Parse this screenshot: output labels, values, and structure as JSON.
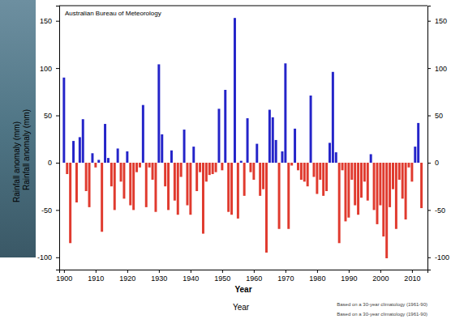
{
  "chart_data": {
    "type": "bar",
    "annotation": "Australian Bureau of Meteorology",
    "xlabel": "Year",
    "ylabel": "Rainfall anomaly (mm)",
    "note": "Based on a 30-year climatology (1961-90)",
    "overlay": {
      "xlabel": "Year",
      "ylabel": "Rainfall anomaly (mm)",
      "note": "Based on a 30-year climatology (1961-90)"
    },
    "x": [
      1900,
      1901,
      1902,
      1903,
      1904,
      1905,
      1906,
      1907,
      1908,
      1909,
      1910,
      1911,
      1912,
      1913,
      1914,
      1915,
      1916,
      1917,
      1918,
      1919,
      1920,
      1921,
      1922,
      1923,
      1924,
      1925,
      1926,
      1927,
      1928,
      1929,
      1930,
      1931,
      1932,
      1933,
      1934,
      1935,
      1936,
      1937,
      1938,
      1939,
      1940,
      1941,
      1942,
      1943,
      1944,
      1945,
      1946,
      1947,
      1948,
      1949,
      1950,
      1951,
      1952,
      1953,
      1954,
      1955,
      1956,
      1957,
      1958,
      1959,
      1960,
      1961,
      1962,
      1963,
      1964,
      1965,
      1966,
      1967,
      1968,
      1969,
      1970,
      1971,
      1972,
      1973,
      1974,
      1975,
      1976,
      1977,
      1978,
      1979,
      1980,
      1981,
      1982,
      1983,
      1984,
      1985,
      1986,
      1987,
      1988,
      1989,
      1990,
      1991,
      1992,
      1993,
      1994,
      1995,
      1996,
      1997,
      1998,
      1999,
      2000,
      2001,
      2002,
      2003,
      2004,
      2005,
      2006,
      2007,
      2008,
      2009,
      2010,
      2011,
      2012,
      2013
    ],
    "values": [
      90,
      -12,
      -85,
      23,
      -42,
      27,
      46,
      -30,
      -47,
      10,
      -5,
      3,
      -73,
      41,
      5,
      -25,
      -50,
      15,
      -20,
      -38,
      12,
      -45,
      -50,
      -10,
      -5,
      61,
      -47,
      -5,
      -18,
      -52,
      104,
      30,
      -25,
      -50,
      13,
      -40,
      -55,
      -15,
      35,
      -45,
      -55,
      17,
      -30,
      -10,
      -75,
      -20,
      -13,
      -12,
      -10,
      57,
      -8,
      77,
      -52,
      -55,
      153,
      -59,
      2,
      -35,
      47,
      -10,
      -18,
      20,
      -35,
      -28,
      -95,
      56,
      48,
      24,
      -70,
      12,
      105,
      -70,
      -3,
      36,
      -8,
      -18,
      -20,
      -25,
      71,
      -15,
      -33,
      -18,
      -35,
      -30,
      21,
      96,
      11,
      -85,
      -8,
      -62,
      -58,
      -18,
      -45,
      -55,
      -37,
      -20,
      -40,
      9,
      -50,
      -65,
      -45,
      -78,
      -101,
      -47,
      -28,
      -70,
      -18,
      -38,
      -60,
      -5,
      -20,
      17,
      42,
      -48
    ],
    "colors": [
      "#2424c9",
      "#e03a2e",
      "#e03a2e",
      "#2424c9",
      "#e03a2e",
      "#2424c9",
      "#2424c9",
      "#e03a2e",
      "#e03a2e",
      "#2424c9",
      "#e03a2e",
      "#2424c9",
      "#e03a2e",
      "#2424c9",
      "#2424c9",
      "#e03a2e",
      "#e03a2e",
      "#2424c9",
      "#e03a2e",
      "#e03a2e",
      "#2424c9",
      "#e03a2e",
      "#e03a2e",
      "#e03a2e",
      "#e03a2e",
      "#2424c9",
      "#e03a2e",
      "#e03a2e",
      "#e03a2e",
      "#e03a2e",
      "#2424c9",
      "#2424c9",
      "#e03a2e",
      "#e03a2e",
      "#2424c9",
      "#e03a2e",
      "#e03a2e",
      "#e03a2e",
      "#2424c9",
      "#e03a2e",
      "#e03a2e",
      "#2424c9",
      "#e03a2e",
      "#e03a2e",
      "#e03a2e",
      "#e03a2e",
      "#e03a2e",
      "#e03a2e",
      "#e03a2e",
      "#2424c9",
      "#e03a2e",
      "#2424c9",
      "#e03a2e",
      "#e03a2e",
      "#2424c9",
      "#e03a2e",
      "#2424c9",
      "#e03a2e",
      "#2424c9",
      "#e03a2e",
      "#e03a2e",
      "#2424c9",
      "#e03a2e",
      "#e03a2e",
      "#e03a2e",
      "#2424c9",
      "#2424c9",
      "#2424c9",
      "#e03a2e",
      "#2424c9",
      "#2424c9",
      "#e03a2e",
      "#e03a2e",
      "#2424c9",
      "#e03a2e",
      "#e03a2e",
      "#e03a2e",
      "#e03a2e",
      "#2424c9",
      "#e03a2e",
      "#e03a2e",
      "#e03a2e",
      "#e03a2e",
      "#e03a2e",
      "#2424c9",
      "#2424c9",
      "#2424c9",
      "#e03a2e",
      "#e03a2e",
      "#e03a2e",
      "#e03a2e",
      "#e03a2e",
      "#e03a2e",
      "#e03a2e",
      "#e03a2e",
      "#e03a2e",
      "#e03a2e",
      "#2424c9",
      "#e03a2e",
      "#e03a2e",
      "#e03a2e",
      "#e03a2e",
      "#e03a2e",
      "#e03a2e",
      "#e03a2e",
      "#e03a2e",
      "#e03a2e",
      "#e03a2e",
      "#e03a2e",
      "#e03a2e",
      "#e03a2e",
      "#2424c9",
      "#2424c9",
      "#e03a2e"
    ],
    "xlim": [
      1898.5,
      2014.9
    ],
    "xticks": [
      1900,
      1910,
      1920,
      1930,
      1940,
      1950,
      1960,
      1970,
      1980,
      1990,
      2000,
      2010
    ],
    "ylim": [
      -113,
      166
    ],
    "yticks": [
      -100,
      -50,
      0,
      50,
      100,
      150
    ],
    "grid": false
  }
}
